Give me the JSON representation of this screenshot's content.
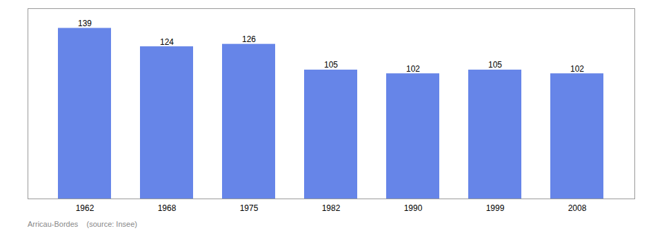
{
  "chart_data": {
    "type": "bar",
    "categories": [
      "1962",
      "1968",
      "1975",
      "1982",
      "1990",
      "1999",
      "2008"
    ],
    "values": [
      139,
      124,
      126,
      105,
      102,
      105,
      102
    ],
    "color": "#6685e8",
    "ylim": [
      0,
      155
    ],
    "yticks": [],
    "tick_labels": "x",
    "grid": false,
    "data_labels": true,
    "caption": "Arricau-Bordes    (source: Insee)"
  }
}
